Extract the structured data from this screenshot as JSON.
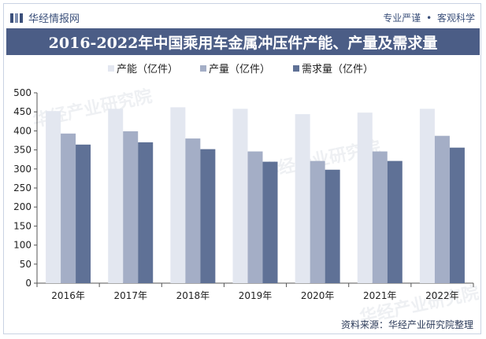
{
  "header": {
    "brand_name": "华经情报网",
    "slogan_left": "专业严谨",
    "slogan_sep": "•",
    "slogan_right": "客观科学"
  },
  "chart_title": "2016-2022年中国乘用车金属冲压件产能、产量及需求量",
  "source_text": "资料来源：华经产业研究院整理",
  "watermark_text": "华经产业研究院",
  "colors": {
    "title_bg": "#4b5d86",
    "series": [
      "#e3e7f0",
      "#a4aec6",
      "#5f7196"
    ]
  },
  "chart_data": {
    "type": "bar",
    "categories": [
      "2016年",
      "2017年",
      "2018年",
      "2019年",
      "2020年",
      "2021年",
      "2022年"
    ],
    "series": [
      {
        "name": "产能（亿件）",
        "values": [
          452,
          458,
          462,
          458,
          444,
          448,
          458
        ]
      },
      {
        "name": "产量（亿件）",
        "values": [
          393,
          399,
          380,
          346,
          321,
          346,
          387
        ]
      },
      {
        "name": "需求量（亿件）",
        "values": [
          364,
          370,
          352,
          319,
          298,
          321,
          356
        ]
      }
    ],
    "ylim": [
      0,
      500
    ],
    "yticks": [
      0,
      50,
      100,
      150,
      200,
      250,
      300,
      350,
      400,
      450,
      500
    ],
    "grid": false,
    "legend_position": "top-center"
  }
}
